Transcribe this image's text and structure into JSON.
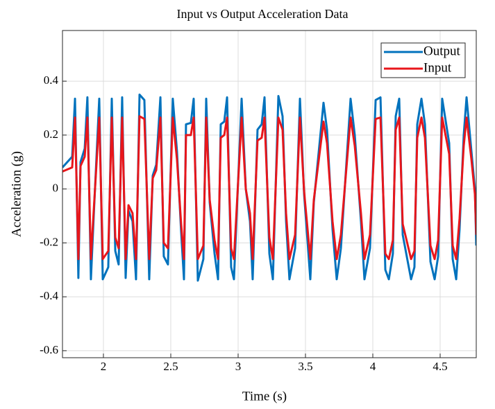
{
  "chart_data": {
    "type": "line",
    "title": "Input vs Output Acceleration Data",
    "x_label": "Time (s)",
    "y_label": "Acceleration (g)",
    "x": [
      1.696,
      1.768,
      1.789,
      1.814,
      1.83,
      1.861,
      1.881,
      1.907,
      1.928,
      1.969,
      1.995,
      2.036,
      2.062,
      2.088,
      2.113,
      2.139,
      2.165,
      2.186,
      2.216,
      2.242,
      2.268,
      2.304,
      2.34,
      2.366,
      2.392,
      2.423,
      2.448,
      2.479,
      2.515,
      2.546,
      2.577,
      2.598,
      2.613,
      2.649,
      2.67,
      2.701,
      2.742,
      2.763,
      2.789,
      2.825,
      2.851,
      2.871,
      2.897,
      2.918,
      2.948,
      2.969,
      3.026,
      3.057,
      3.088,
      3.108,
      3.144,
      3.175,
      3.196,
      3.232,
      3.258,
      3.299,
      3.33,
      3.356,
      3.381,
      3.423,
      3.459,
      3.49,
      3.536,
      3.562,
      3.634,
      3.66,
      3.701,
      3.732,
      3.763,
      3.835,
      3.866,
      3.912,
      3.938,
      3.979,
      4.021,
      4.057,
      4.093,
      4.119,
      4.149,
      4.17,
      4.196,
      4.222,
      4.284,
      4.309,
      4.33,
      4.361,
      4.387,
      4.428,
      4.459,
      4.485,
      4.515,
      4.567,
      4.593,
      4.619,
      4.644,
      4.675,
      4.696,
      4.732,
      4.758,
      4.768
    ],
    "series": [
      {
        "name": "Output",
        "color": "#0072bd",
        "values": [
          0.08,
          0.12,
          0.335,
          -0.33,
          0.1,
          0.15,
          0.34,
          -0.335,
          -0.1,
          0.335,
          -0.335,
          -0.29,
          0.335,
          -0.23,
          -0.28,
          0.34,
          -0.33,
          -0.08,
          -0.12,
          -0.335,
          0.35,
          0.33,
          -0.335,
          0.05,
          0.09,
          0.34,
          -0.25,
          -0.28,
          0.335,
          0.14,
          -0.16,
          -0.335,
          0.24,
          0.245,
          0.335,
          -0.34,
          -0.26,
          0.335,
          -0.05,
          -0.24,
          -0.335,
          0.24,
          0.25,
          0.34,
          -0.29,
          -0.335,
          0.335,
          0.0,
          -0.12,
          -0.335,
          0.22,
          0.24,
          0.34,
          -0.24,
          -0.335,
          0.345,
          0.27,
          -0.12,
          -0.335,
          -0.22,
          0.335,
          -0.02,
          -0.335,
          -0.05,
          0.32,
          0.22,
          -0.15,
          -0.335,
          -0.22,
          0.335,
          0.2,
          -0.12,
          -0.335,
          -0.22,
          0.33,
          0.34,
          -0.3,
          -0.335,
          -0.24,
          0.27,
          0.335,
          -0.17,
          -0.335,
          -0.29,
          0.24,
          0.335,
          0.24,
          -0.27,
          -0.335,
          -0.25,
          0.335,
          0.17,
          -0.26,
          -0.335,
          -0.15,
          0.2,
          0.34,
          0.14,
          0.0,
          -0.21
        ]
      },
      {
        "name": "Input",
        "color": "#e8161b",
        "values": [
          0.065,
          0.08,
          0.265,
          -0.26,
          0.085,
          0.12,
          0.265,
          -0.26,
          -0.08,
          0.265,
          -0.26,
          -0.23,
          0.265,
          -0.18,
          -0.22,
          0.265,
          -0.26,
          -0.06,
          -0.09,
          -0.26,
          0.27,
          0.26,
          -0.26,
          0.04,
          0.07,
          0.265,
          -0.2,
          -0.22,
          0.265,
          0.11,
          -0.13,
          -0.26,
          0.2,
          0.2,
          0.265,
          -0.26,
          -0.21,
          0.265,
          -0.04,
          -0.19,
          -0.26,
          0.19,
          0.2,
          0.265,
          -0.22,
          -0.26,
          0.265,
          0.0,
          -0.09,
          -0.26,
          0.18,
          0.19,
          0.265,
          -0.18,
          -0.26,
          0.265,
          0.22,
          -0.09,
          -0.26,
          -0.17,
          0.265,
          -0.01,
          -0.26,
          -0.04,
          0.25,
          0.17,
          -0.12,
          -0.26,
          -0.17,
          0.265,
          0.16,
          -0.09,
          -0.26,
          -0.17,
          0.26,
          0.265,
          -0.24,
          -0.26,
          -0.19,
          0.22,
          0.265,
          -0.13,
          -0.26,
          -0.23,
          0.19,
          0.265,
          0.19,
          -0.21,
          -0.26,
          -0.19,
          0.265,
          0.13,
          -0.21,
          -0.26,
          -0.11,
          0.16,
          0.265,
          0.11,
          -0.02,
          -0.17
        ]
      }
    ],
    "xlim": [
      1.696,
      4.768
    ],
    "ylim": [
      -0.626,
      0.588
    ],
    "xticks": [
      2,
      2.5,
      3,
      3.5,
      4,
      4.5
    ],
    "yticks": [
      -0.6,
      -0.4,
      -0.2,
      0,
      0.2,
      0.4
    ],
    "grid": true,
    "legend": "northeast"
  }
}
